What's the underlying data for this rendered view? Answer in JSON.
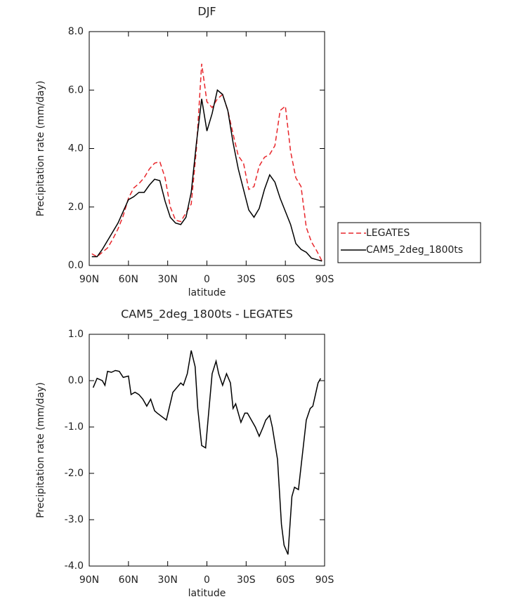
{
  "chart_data": [
    {
      "type": "line",
      "title": "DJF",
      "xlabel": "latitude",
      "ylabel": "Precipitation rate (mm/day)",
      "x": [
        88,
        84,
        80,
        76,
        72,
        68,
        64,
        60,
        56,
        52,
        48,
        44,
        40,
        36,
        32,
        28,
        24,
        20,
        16,
        12,
        8,
        4,
        0,
        -4,
        -8,
        -12,
        -16,
        -20,
        -24,
        -28,
        -32,
        -36,
        -40,
        -44,
        -48,
        -52,
        -56,
        -60,
        -64,
        -68,
        -72,
        -76,
        -80,
        -84,
        -88
      ],
      "series": [
        {
          "name": "LEGATES",
          "color": "#e8262b",
          "line_style": "dashed",
          "values": [
            0.4,
            0.3,
            0.45,
            0.6,
            0.9,
            1.25,
            1.7,
            2.3,
            2.65,
            2.8,
            3.0,
            3.3,
            3.5,
            3.55,
            3.0,
            2.0,
            1.55,
            1.5,
            1.8,
            2.1,
            4.0,
            6.9,
            5.6,
            5.4,
            5.7,
            5.85,
            5.3,
            4.5,
            3.75,
            3.5,
            2.6,
            2.7,
            3.4,
            3.7,
            3.8,
            4.1,
            5.3,
            5.45,
            3.9,
            3.0,
            2.7,
            1.3,
            0.8,
            0.5,
            0.15
          ]
        },
        {
          "name": "CAM5_2deg_1800ts",
          "color": "#000000",
          "line_style": "solid",
          "values": [
            0.3,
            0.3,
            0.55,
            0.85,
            1.15,
            1.45,
            1.85,
            2.25,
            2.35,
            2.5,
            2.5,
            2.75,
            2.95,
            2.9,
            2.2,
            1.65,
            1.45,
            1.4,
            1.65,
            2.5,
            4.2,
            5.7,
            4.6,
            5.2,
            6.0,
            5.85,
            5.3,
            4.2,
            3.3,
            2.6,
            1.9,
            1.65,
            1.95,
            2.6,
            3.1,
            2.85,
            2.3,
            1.85,
            1.4,
            0.75,
            0.55,
            0.45,
            0.25,
            0.2,
            0.15
          ]
        }
      ],
      "xlim": [
        90,
        -90
      ],
      "xticks": [
        {
          "value": 90,
          "label": "90N"
        },
        {
          "value": 60,
          "label": "60N"
        },
        {
          "value": 30,
          "label": "30N"
        },
        0,
        {
          "value": -30,
          "label": "30S"
        },
        {
          "value": -60,
          "label": "60S"
        },
        {
          "value": -90,
          "label": "90S"
        }
      ],
      "ylim": [
        0,
        8
      ],
      "yticks": [
        {
          "value": 0,
          "label": "0.0"
        },
        {
          "value": 2,
          "label": "2.0"
        },
        {
          "value": 4,
          "label": "4.0"
        },
        {
          "value": 6,
          "label": "6.0"
        },
        {
          "value": 8,
          "label": "8.0"
        }
      ],
      "legend": "right"
    },
    {
      "type": "line",
      "title": "CAM5_2deg_1800ts - LEGATES",
      "xlabel": "latitude",
      "ylabel": "Precipitation rate (mm/day)",
      "x": [
        87,
        84,
        80,
        78,
        76,
        73,
        70,
        67,
        64,
        60,
        58,
        55,
        52,
        49,
        46,
        43,
        40,
        38,
        31,
        26,
        20,
        18,
        15,
        12,
        9,
        7,
        4,
        1,
        -1,
        -4,
        -7,
        -9,
        -12,
        -15,
        -18,
        -20,
        -22,
        -26,
        -29,
        -31,
        -35,
        -37,
        -40,
        -43,
        -45,
        -48,
        -50,
        -54,
        -57,
        -59,
        -62,
        -65,
        -67,
        -70,
        -73,
        -76,
        -79,
        -81,
        -85,
        -87
      ],
      "series": [
        {
          "name": "CAM5_2deg_1800ts - LEGATES",
          "color": "#000000",
          "line_style": "solid",
          "values": [
            -0.15,
            0.05,
            0.0,
            -0.1,
            0.2,
            0.18,
            0.22,
            0.2,
            0.07,
            0.1,
            -0.3,
            -0.25,
            -0.3,
            -0.4,
            -0.55,
            -0.4,
            -0.65,
            -0.7,
            -0.85,
            -0.25,
            -0.05,
            -0.1,
            0.15,
            0.65,
            0.3,
            -0.6,
            -1.4,
            -1.45,
            -0.8,
            0.15,
            0.42,
            0.15,
            -0.1,
            0.15,
            -0.05,
            -0.6,
            -0.5,
            -0.9,
            -0.7,
            -0.7,
            -0.9,
            -1.0,
            -1.2,
            -1.0,
            -0.85,
            -0.75,
            -1.0,
            -1.7,
            -3.1,
            -3.55,
            -3.75,
            -2.5,
            -2.3,
            -2.35,
            -1.6,
            -0.85,
            -0.6,
            -0.55,
            -0.05,
            0.05
          ]
        }
      ],
      "xlim": [
        90,
        -90
      ],
      "xticks": [
        {
          "value": 90,
          "label": "90N"
        },
        {
          "value": 60,
          "label": "60N"
        },
        {
          "value": 30,
          "label": "30N"
        },
        0,
        {
          "value": -30,
          "label": "30S"
        },
        {
          "value": -60,
          "label": "60S"
        },
        {
          "value": -90,
          "label": "90S"
        }
      ],
      "ylim": [
        -4,
        1
      ],
      "yticks": [
        {
          "value": -4,
          "label": "-4.0"
        },
        {
          "value": -3,
          "label": "-3.0"
        },
        {
          "value": -2,
          "label": "-2.0"
        },
        {
          "value": -1,
          "label": "-1.0"
        },
        {
          "value": 0,
          "label": "0.0"
        },
        {
          "value": 1,
          "label": "1.0"
        }
      ]
    }
  ]
}
